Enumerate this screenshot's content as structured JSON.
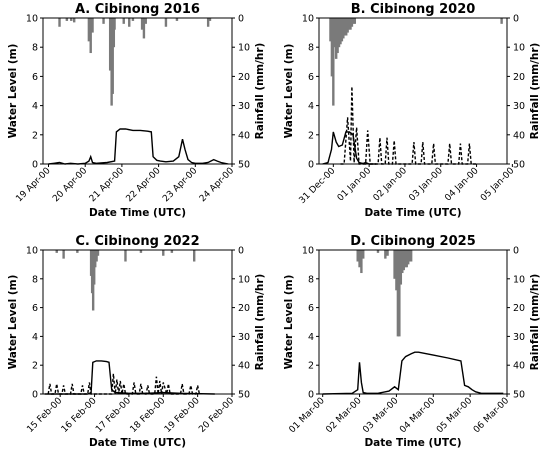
{
  "chart_data": [
    {
      "type": "line",
      "title": "A. Cibinong 2016",
      "xlabel": "Date Time (UTC)",
      "ylabel": "Water Level (m)",
      "y2label": "Rainfall (mm/hr)",
      "ylim": [
        0,
        10
      ],
      "y2lim": [
        0,
        50
      ],
      "y2_inverted": true,
      "yticks": [
        "0",
        "2",
        "4",
        "6",
        "8",
        "10"
      ],
      "y2ticks": [
        "0",
        "10",
        "20",
        "30",
        "40",
        "50"
      ],
      "x_ticks": [
        "19 Apr-00",
        "20 Apr-00",
        "21 Apr-00",
        "22 Apr-00",
        "23 Apr-00",
        "24 Apr-00"
      ],
      "x_range_days": [
        -0.15,
        5
      ],
      "series": [
        {
          "style": "solid",
          "x": [
            0,
            0.15,
            0.3,
            0.45,
            0.6,
            0.8,
            1.0,
            1.1,
            1.15,
            1.2,
            1.3,
            1.6,
            1.8,
            1.85,
            1.95,
            2.1,
            2.3,
            2.5,
            2.7,
            2.8,
            2.85,
            2.95,
            3.05,
            3.2,
            3.4,
            3.55,
            3.65,
            3.72,
            3.8,
            3.9,
            4.0,
            4.2,
            4.35,
            4.5,
            4.6,
            4.7,
            4.9
          ],
          "y": [
            0,
            0.05,
            0.1,
            0,
            0.05,
            0,
            0.05,
            0.2,
            0.5,
            0.1,
            0.05,
            0.1,
            0.2,
            2.2,
            2.4,
            2.4,
            2.3,
            2.3,
            2.25,
            2.2,
            0.5,
            0.25,
            0.2,
            0.15,
            0.2,
            0.5,
            1.7,
            1.0,
            0.3,
            0.1,
            0.05,
            0.05,
            0.1,
            0.3,
            0.2,
            0.1,
            0
          ]
        }
      ],
      "rainfall_bars": [
        {
          "x": 0.3,
          "v": 3
        },
        {
          "x": 0.5,
          "v": 1
        },
        {
          "x": 0.62,
          "v": 1
        },
        {
          "x": 0.7,
          "v": 1.5
        },
        {
          "x": 1.1,
          "v": 8
        },
        {
          "x": 1.15,
          "v": 12
        },
        {
          "x": 1.2,
          "v": 5
        },
        {
          "x": 1.5,
          "v": 2
        },
        {
          "x": 1.68,
          "v": 18
        },
        {
          "x": 1.72,
          "v": 30
        },
        {
          "x": 1.75,
          "v": 26
        },
        {
          "x": 1.78,
          "v": 10
        },
        {
          "x": 1.8,
          "v": 4
        },
        {
          "x": 2.05,
          "v": 2
        },
        {
          "x": 2.2,
          "v": 3
        },
        {
          "x": 2.3,
          "v": 1
        },
        {
          "x": 2.55,
          "v": 4
        },
        {
          "x": 2.6,
          "v": 7
        },
        {
          "x": 2.65,
          "v": 2
        },
        {
          "x": 3.2,
          "v": 3
        },
        {
          "x": 3.5,
          "v": 1
        },
        {
          "x": 4.35,
          "v": 3
        },
        {
          "x": 4.4,
          "v": 1
        }
      ]
    },
    {
      "type": "line",
      "title": "B. Cibinong 2020",
      "xlabel": "Date Time (UTC)",
      "ylabel": "Water Level (m)",
      "y2label": "Rainfall (mm/hr)",
      "ylim": [
        0,
        10
      ],
      "y2lim": [
        0,
        50
      ],
      "y2_inverted": true,
      "yticks": [
        "0",
        "2",
        "4",
        "6",
        "8",
        "10"
      ],
      "y2ticks": [
        "0",
        "10",
        "20",
        "30",
        "40",
        "50"
      ],
      "x_ticks": [
        "31 Dec-00",
        "01 Jan-00",
        "02 Jan-00",
        "03 Jan-00",
        "04 Jan-00",
        "05 Jan-00"
      ],
      "x_range_days": [
        -0.4,
        4.85
      ],
      "series": [
        {
          "style": "solid",
          "x": [
            -0.3,
            -0.15,
            -0.05,
            0.0,
            0.08,
            0.15,
            0.25,
            0.35,
            0.45,
            0.55,
            0.6,
            0.65,
            0.72,
            0.8,
            0.85,
            0.9,
            1.0,
            1.2
          ],
          "y": [
            0,
            0.1,
            1.0,
            2.2,
            1.5,
            1.2,
            1.3,
            2.2,
            2.2,
            2.0,
            1.2,
            0.4,
            0.1,
            0.05,
            0.05,
            0.1,
            0,
            0
          ]
        },
        {
          "style": "dashed",
          "x": [
            0.2,
            0.3,
            0.4,
            0.48,
            0.52,
            0.58,
            0.65,
            0.72,
            0.8,
            0.9,
            0.96,
            1.03,
            1.1,
            1.25,
            1.3,
            1.35,
            1.45,
            1.5,
            1.55,
            1.65,
            1.7,
            1.75,
            2.2,
            2.25,
            2.3,
            2.45,
            2.5,
            2.55,
            2.75,
            2.8,
            2.85,
            3.2,
            3.25,
            3.3,
            3.5,
            3.55,
            3.6,
            3.75,
            3.8,
            3.85,
            4.0
          ],
          "y": [
            0,
            0,
            3.2,
            0.2,
            5.3,
            0.1,
            2.5,
            0,
            0,
            0,
            2.3,
            0,
            0,
            0,
            1.8,
            0,
            0,
            1.8,
            0,
            0,
            1.6,
            0,
            0,
            1.5,
            0,
            0,
            1.5,
            0,
            0,
            1.4,
            0,
            0,
            1.4,
            0,
            0,
            1.4,
            0,
            0,
            1.4,
            0,
            0
          ]
        }
      ],
      "rainfall_bars": [
        {
          "x": -0.08,
          "v": 8
        },
        {
          "x": -0.04,
          "v": 20
        },
        {
          "x": 0.0,
          "v": 30
        },
        {
          "x": 0.04,
          "v": 10
        },
        {
          "x": 0.08,
          "v": 14
        },
        {
          "x": 0.12,
          "v": 12
        },
        {
          "x": 0.16,
          "v": 10
        },
        {
          "x": 0.2,
          "v": 9
        },
        {
          "x": 0.24,
          "v": 8
        },
        {
          "x": 0.28,
          "v": 7
        },
        {
          "x": 0.32,
          "v": 6
        },
        {
          "x": 0.36,
          "v": 6
        },
        {
          "x": 0.4,
          "v": 5
        },
        {
          "x": 0.44,
          "v": 4
        },
        {
          "x": 0.48,
          "v": 4
        },
        {
          "x": 0.52,
          "v": 3
        },
        {
          "x": 0.56,
          "v": 2
        },
        {
          "x": 0.6,
          "v": 2
        },
        {
          "x": 4.7,
          "v": 2
        }
      ]
    },
    {
      "type": "line",
      "title": "C. Cibinong 2022",
      "xlabel": "Date Time (UTC)",
      "ylabel": "Water Level (m)",
      "y2label": "Rainfall (mm/hr)",
      "ylim": [
        0,
        10
      ],
      "y2lim": [
        0,
        50
      ],
      "y2_inverted": true,
      "yticks": [
        "0",
        "2",
        "4",
        "6",
        "8",
        "10"
      ],
      "y2ticks": [
        "0",
        "10",
        "20",
        "30",
        "40",
        "50"
      ],
      "x_ticks": [
        "15 Feb-00",
        "16 Feb-00",
        "17 Feb-00",
        "18 Feb-00",
        "19 Feb-00",
        "20 Feb-00"
      ],
      "x_range_days": [
        -0.5,
        5
      ],
      "series": [
        {
          "style": "solid",
          "x": [
            -0.45,
            0.8,
            0.9,
            0.95,
            1.05,
            1.2,
            1.35,
            1.42,
            1.5,
            1.6,
            2.0,
            2.5,
            3.0,
            3.5,
            4.5
          ],
          "y": [
            0,
            0,
            0.1,
            2.2,
            2.3,
            2.3,
            2.25,
            2.2,
            0.3,
            0.1,
            0.05,
            0.05,
            0.1,
            0.05,
            0.0
          ]
        },
        {
          "style": "dashed",
          "x": [
            -0.35,
            -0.3,
            -0.25,
            -0.15,
            -0.1,
            -0.05,
            0.05,
            0.1,
            0.15,
            0.3,
            0.35,
            0.4,
            0.6,
            0.65,
            0.7,
            0.8,
            0.85,
            0.9,
            1.5,
            1.55,
            1.6,
            1.65,
            1.7,
            1.75,
            1.8,
            1.85,
            1.9,
            2.1,
            2.15,
            2.2,
            2.3,
            2.35,
            2.4,
            2.5,
            2.55,
            2.6,
            2.75,
            2.8,
            2.85,
            2.9,
            2.95,
            3.0,
            3.1,
            3.15,
            3.2,
            3.5,
            3.55,
            3.6,
            3.75,
            3.8,
            3.85,
            3.95,
            4.0,
            4.05
          ],
          "y": [
            0,
            0.7,
            0,
            0,
            0.7,
            0,
            0,
            0.6,
            0,
            0,
            0.7,
            0,
            0,
            0.6,
            0,
            0,
            0.8,
            0,
            0,
            1.4,
            0,
            1.0,
            0,
            0.9,
            0,
            0.7,
            0,
            0,
            0.8,
            0,
            0,
            0.7,
            0,
            0,
            0.6,
            0,
            0,
            1.2,
            0,
            0.9,
            0,
            0.8,
            0,
            0.7,
            0,
            0,
            0.7,
            0,
            0,
            0.6,
            0,
            0,
            0.6,
            0
          ]
        }
      ],
      "rainfall_bars": [
        {
          "x": -0.1,
          "v": 1
        },
        {
          "x": 0.1,
          "v": 3
        },
        {
          "x": 0.5,
          "v": 1
        },
        {
          "x": 0.9,
          "v": 9
        },
        {
          "x": 0.93,
          "v": 15
        },
        {
          "x": 0.96,
          "v": 21
        },
        {
          "x": 0.99,
          "v": 12
        },
        {
          "x": 1.02,
          "v": 6
        },
        {
          "x": 1.06,
          "v": 4
        },
        {
          "x": 1.1,
          "v": 2
        },
        {
          "x": 1.9,
          "v": 4
        },
        {
          "x": 2.35,
          "v": 1
        },
        {
          "x": 3.0,
          "v": 2
        },
        {
          "x": 3.25,
          "v": 1
        },
        {
          "x": 3.9,
          "v": 4
        }
      ]
    },
    {
      "type": "line",
      "title": "D. Cibinong 2025",
      "xlabel": "Date Time (UTC)",
      "ylabel": "Water Level (m)",
      "y2label": "Rainfall (mm/hr)",
      "ylim": [
        0,
        10
      ],
      "y2lim": [
        0,
        50
      ],
      "y2_inverted": true,
      "yticks": [
        "0",
        "2",
        "4",
        "6",
        "8",
        "10"
      ],
      "y2ticks": [
        "0",
        "10",
        "20",
        "30",
        "40",
        "50"
      ],
      "x_ticks": [
        "01 Mar-00",
        "02 Mar-00",
        "03 Mar-00",
        "04 Mar-00",
        "05 Mar-00",
        "06 Mar-00"
      ],
      "x_range_days": [
        -0.1,
        5
      ],
      "series": [
        {
          "style": "solid",
          "x": [
            0,
            0.8,
            0.95,
            1.0,
            1.05,
            1.1,
            1.2,
            1.5,
            1.8,
            1.95,
            2.05,
            2.15,
            2.25,
            2.4,
            2.5,
            2.6,
            3.0,
            3.4,
            3.75,
            3.85,
            3.95,
            4.05,
            4.15,
            4.3,
            4.6,
            4.9
          ],
          "y": [
            0,
            0.05,
            0.3,
            2.2,
            0.8,
            0.1,
            0.05,
            0.05,
            0.2,
            0.5,
            0.3,
            2.3,
            2.6,
            2.8,
            2.9,
            2.9,
            2.7,
            2.5,
            2.3,
            0.6,
            0.5,
            0.3,
            0.15,
            0.05,
            0.05,
            0.05
          ]
        }
      ],
      "rainfall_bars": [
        {
          "x": 0.95,
          "v": 4
        },
        {
          "x": 1.0,
          "v": 6
        },
        {
          "x": 1.05,
          "v": 8
        },
        {
          "x": 1.1,
          "v": 3
        },
        {
          "x": 1.5,
          "v": 1
        },
        {
          "x": 1.7,
          "v": 3
        },
        {
          "x": 1.76,
          "v": 2
        },
        {
          "x": 1.95,
          "v": 10
        },
        {
          "x": 2.0,
          "v": 14
        },
        {
          "x": 2.04,
          "v": 30
        },
        {
          "x": 2.08,
          "v": 30
        },
        {
          "x": 2.12,
          "v": 12
        },
        {
          "x": 2.16,
          "v": 8
        },
        {
          "x": 2.2,
          "v": 7
        },
        {
          "x": 2.24,
          "v": 6
        },
        {
          "x": 2.28,
          "v": 6
        },
        {
          "x": 2.32,
          "v": 5
        },
        {
          "x": 2.36,
          "v": 4
        },
        {
          "x": 2.4,
          "v": 4
        }
      ]
    }
  ]
}
